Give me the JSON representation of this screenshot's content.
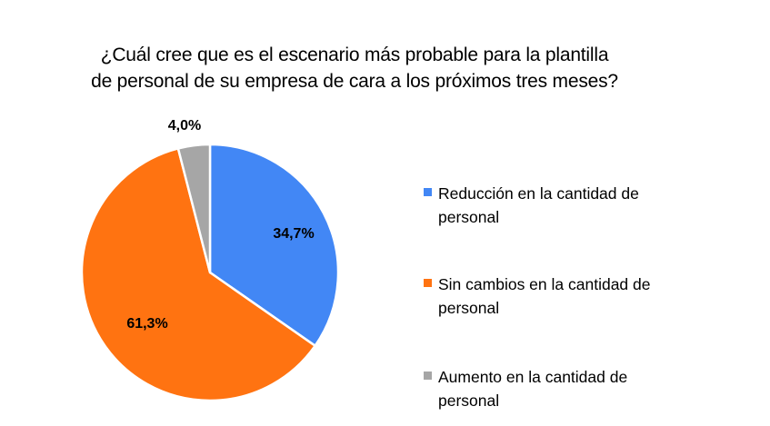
{
  "chart_data": {
    "type": "pie",
    "title_lines": [
      "¿Cuál cree que es el escenario más probable para la plantilla",
      "de personal de su empresa de cara a los próximos tres meses?"
    ],
    "categories": [
      "Reducción en la cantidad de personal",
      "Sin cambios en la cantidad de personal",
      "Aumento en la cantidad de personal"
    ],
    "values": [
      34.7,
      61.3,
      4.0
    ],
    "data_labels": [
      "34,7%",
      "61,3%",
      "4,0%"
    ],
    "colors": [
      "#4287f5",
      "#ff7311",
      "#a6a6a6"
    ],
    "start_angle_deg": 0,
    "direction": "clockwise",
    "legend_position": "right"
  }
}
